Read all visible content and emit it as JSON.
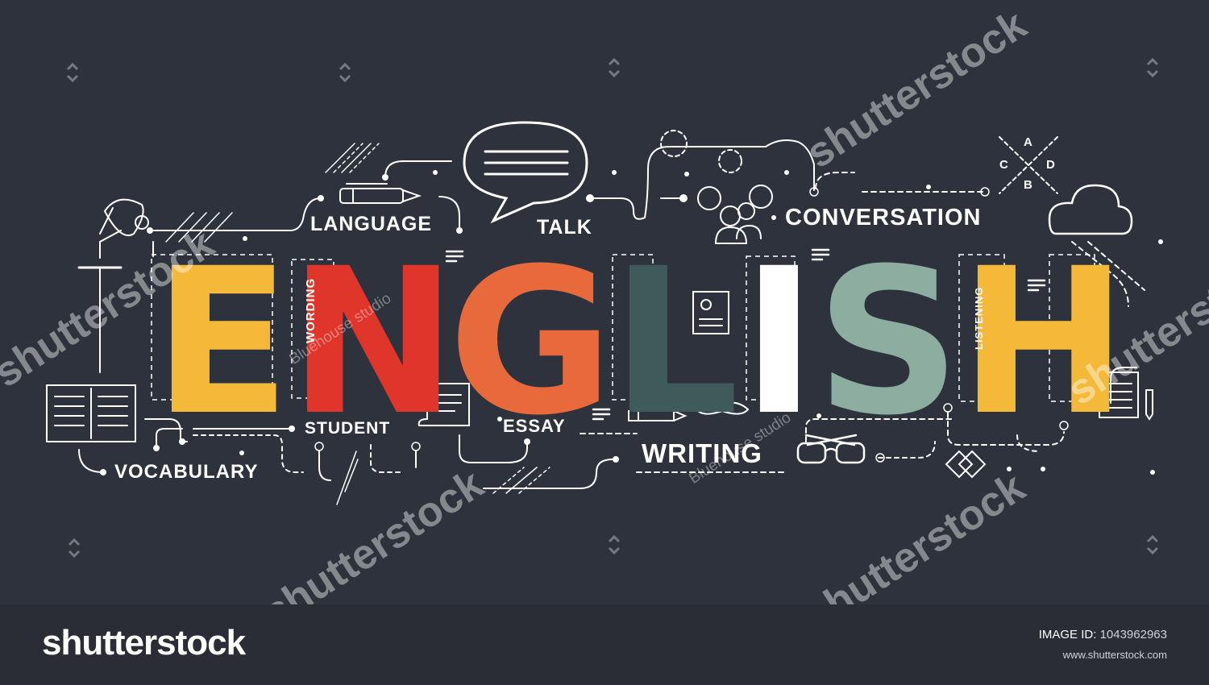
{
  "image": {
    "title_letters": [
      {
        "char": "E",
        "color": "#f5b93a"
      },
      {
        "char": "N",
        "color": "#e0352b"
      },
      {
        "char": "G",
        "color": "#e86a3c"
      },
      {
        "char": "L",
        "color": "#3e5a5b"
      },
      {
        "char": "I",
        "color": "#ffffff"
      },
      {
        "char": "S",
        "color": "#8cada0"
      },
      {
        "char": "H",
        "color": "#f5b93a"
      }
    ],
    "keywords": {
      "language": "LANGUAGE",
      "talk": "TALK",
      "conversation": "CONVERSATION",
      "student": "STUDENT",
      "vocabulary": "VOCABULARY",
      "essay": "ESSAY",
      "writing": "WRITING",
      "wording": "WORDING",
      "listening": "LISTENING"
    },
    "quiz_options": [
      "A",
      "B",
      "C",
      "D"
    ],
    "icons": [
      "desk-lamp-icon",
      "book-icon",
      "pen-icon",
      "speech-bubble-icon",
      "people-icon",
      "cloud-icon",
      "certificate-icon",
      "scroll-icon",
      "pencil-icon",
      "mustache-icon",
      "glasses-icon",
      "notepad-icon",
      "diamond-icon"
    ]
  },
  "watermark": {
    "brand": "shutterstock",
    "contributor": "Bluehouse studio"
  },
  "footer": {
    "logo": "shutterstock",
    "image_id_label": "IMAGE ID:",
    "image_id_value": "1043962963",
    "site": "www.shutterstock.com"
  },
  "colors": {
    "background": "#2e323c",
    "footer_background": "#2a2d35",
    "line_art": "#ffffff"
  }
}
